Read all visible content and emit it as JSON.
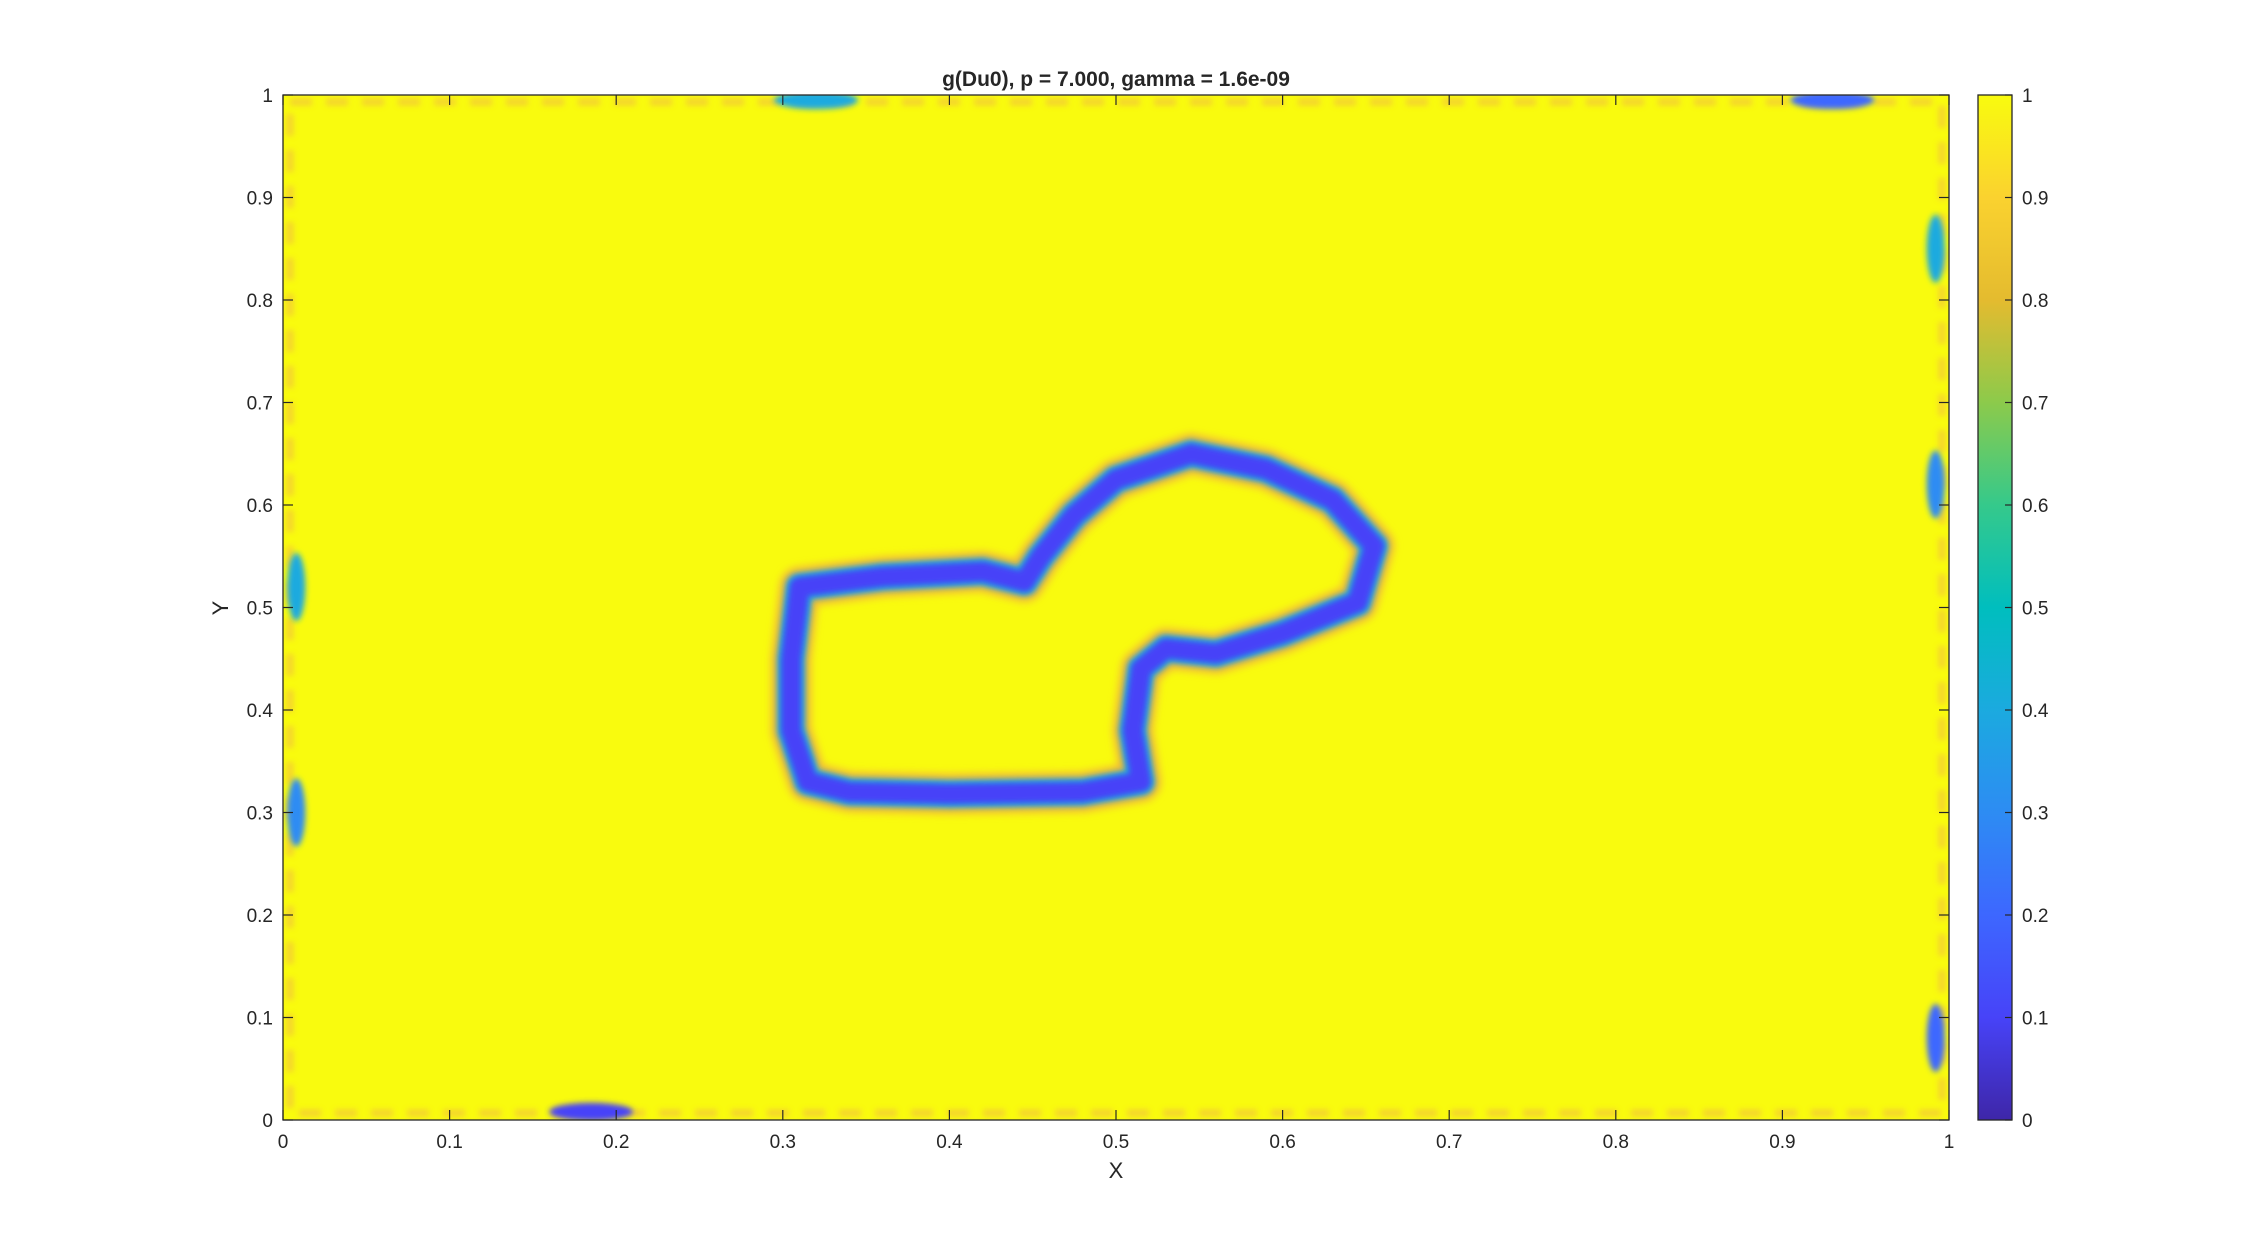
{
  "chart_data": {
    "type": "heatmap",
    "title": "g(Du0), p = 7.000, gamma = 1.6e-09",
    "xlabel": "X",
    "ylabel": "Y",
    "xlim": [
      0,
      1
    ],
    "ylim": [
      0,
      1
    ],
    "xticks": [
      "0",
      "0.1",
      "0.2",
      "0.3",
      "0.4",
      "0.5",
      "0.6",
      "0.7",
      "0.8",
      "0.9",
      "1"
    ],
    "yticks": [
      "0",
      "0.1",
      "0.2",
      "0.3",
      "0.4",
      "0.5",
      "0.6",
      "0.7",
      "0.8",
      "0.9",
      "1"
    ],
    "colorbar": {
      "colormap": "parula",
      "range": [
        0,
        1
      ],
      "ticks": [
        "0",
        "0.1",
        "0.2",
        "0.3",
        "0.4",
        "0.5",
        "0.6",
        "0.7",
        "0.8",
        "0.9",
        "1"
      ]
    },
    "background_value": 1.0,
    "contour_value": 0.05,
    "contour_outline": [
      [
        0.31,
        0.52
      ],
      [
        0.36,
        0.53
      ],
      [
        0.42,
        0.535
      ],
      [
        0.445,
        0.525
      ],
      [
        0.455,
        0.55
      ],
      [
        0.475,
        0.59
      ],
      [
        0.5,
        0.625
      ],
      [
        0.545,
        0.65
      ],
      [
        0.59,
        0.635
      ],
      [
        0.63,
        0.605
      ],
      [
        0.655,
        0.56
      ],
      [
        0.645,
        0.505
      ],
      [
        0.6,
        0.475
      ],
      [
        0.56,
        0.455
      ],
      [
        0.53,
        0.46
      ],
      [
        0.515,
        0.44
      ],
      [
        0.51,
        0.38
      ],
      [
        0.515,
        0.33
      ],
      [
        0.48,
        0.32
      ],
      [
        0.4,
        0.318
      ],
      [
        0.34,
        0.32
      ],
      [
        0.315,
        0.33
      ],
      [
        0.305,
        0.38
      ],
      [
        0.305,
        0.45
      ],
      [
        0.31,
        0.52
      ]
    ],
    "edge_artifacts": [
      {
        "x": 0.185,
        "y": 0.008,
        "value": 0.1
      },
      {
        "x": 0.93,
        "y": 0.995,
        "value": 0.15
      },
      {
        "x": 0.32,
        "y": 0.995,
        "value": 0.4
      },
      {
        "x": 0.008,
        "y": 0.3,
        "value": 0.25
      },
      {
        "x": 0.008,
        "y": 0.52,
        "value": 0.4
      },
      {
        "x": 0.992,
        "y": 0.08,
        "value": 0.2
      },
      {
        "x": 0.992,
        "y": 0.62,
        "value": 0.3
      },
      {
        "x": 0.992,
        "y": 0.85,
        "value": 0.35
      }
    ]
  }
}
